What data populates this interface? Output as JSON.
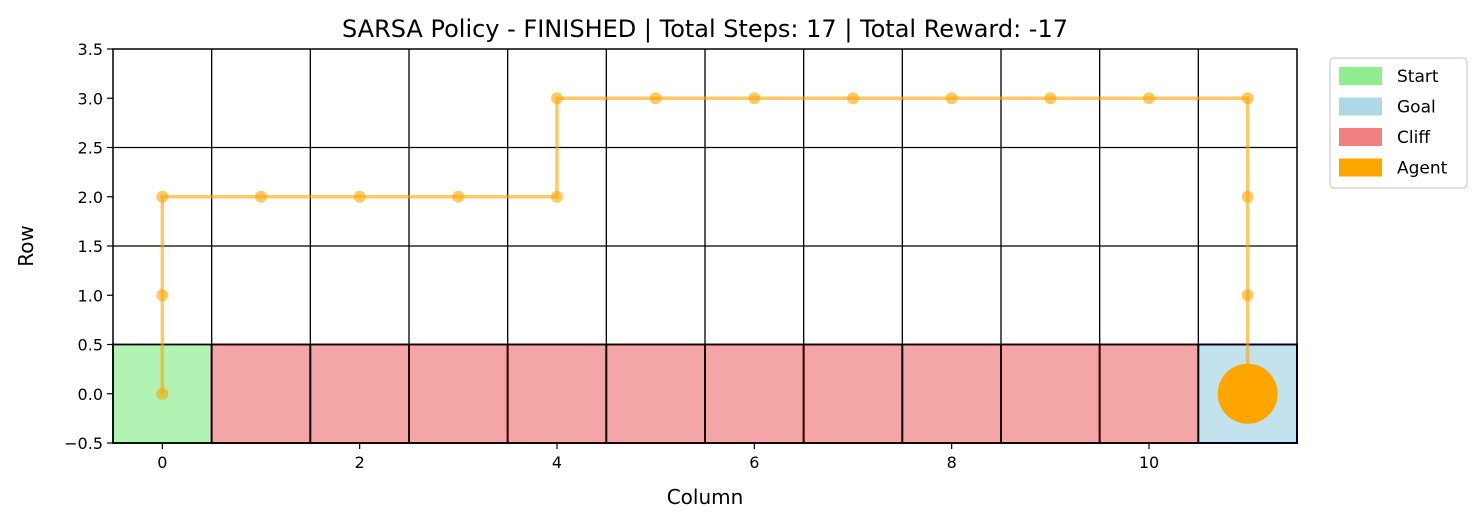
{
  "chart_data": {
    "type": "scatter",
    "title": "SARSA Policy - FINISHED | Total Steps: 17 | Total Reward: -17",
    "xlabel": "Column",
    "ylabel": "Row",
    "xlim": [
      -0.5,
      11.5
    ],
    "ylim": [
      -0.5,
      3.5
    ],
    "xticks": [
      0,
      2,
      4,
      6,
      8,
      10
    ],
    "xtick_labels": [
      "0",
      "2",
      "4",
      "6",
      "8",
      "10"
    ],
    "yticks": [
      -0.5,
      0.0,
      0.5,
      1.0,
      1.5,
      2.0,
      2.5,
      3.0,
      3.5
    ],
    "ytick_labels": [
      "−0.5",
      "0.0",
      "0.5",
      "1.0",
      "1.5",
      "2.0",
      "2.5",
      "3.0",
      "3.5"
    ],
    "grid_columns": 12,
    "grid_rows": 4,
    "cells": [
      {
        "type": "start",
        "col": 0,
        "row": 0
      },
      {
        "type": "cliff",
        "col": 1,
        "row": 0
      },
      {
        "type": "cliff",
        "col": 2,
        "row": 0
      },
      {
        "type": "cliff",
        "col": 3,
        "row": 0
      },
      {
        "type": "cliff",
        "col": 4,
        "row": 0
      },
      {
        "type": "cliff",
        "col": 5,
        "row": 0
      },
      {
        "type": "cliff",
        "col": 6,
        "row": 0
      },
      {
        "type": "cliff",
        "col": 7,
        "row": 0
      },
      {
        "type": "cliff",
        "col": 8,
        "row": 0
      },
      {
        "type": "cliff",
        "col": 9,
        "row": 0
      },
      {
        "type": "cliff",
        "col": 10,
        "row": 0
      },
      {
        "type": "goal",
        "col": 11,
        "row": 0
      }
    ],
    "path": {
      "x": [
        0,
        0,
        0,
        1,
        2,
        3,
        4,
        4,
        5,
        6,
        7,
        8,
        9,
        10,
        11,
        11,
        11,
        11
      ],
      "y": [
        0,
        1,
        2,
        2,
        2,
        2,
        2,
        3,
        3,
        3,
        3,
        3,
        3,
        3,
        3,
        2,
        1,
        0
      ]
    },
    "agent": {
      "x": 11,
      "y": 0
    },
    "legend": {
      "placement": "outside-top-right",
      "entries": [
        {
          "label": "Start",
          "color": "#90ee90"
        },
        {
          "label": "Goal",
          "color": "#add8e6"
        },
        {
          "label": "Cliff",
          "color": "#f08080"
        },
        {
          "label": "Agent",
          "color": "#ffa500"
        }
      ]
    },
    "colors": {
      "start_fill": "#b2f2b2",
      "start_edge": "#1a6b1a",
      "cliff_fill": "#f4a6a6",
      "cliff_edge": "#5a0000",
      "goal_fill": "#c2e2ed",
      "goal_edge": "#000080",
      "path": "#ffa500",
      "agent": "#ffa500",
      "grid": "#000000"
    },
    "grid": true
  }
}
